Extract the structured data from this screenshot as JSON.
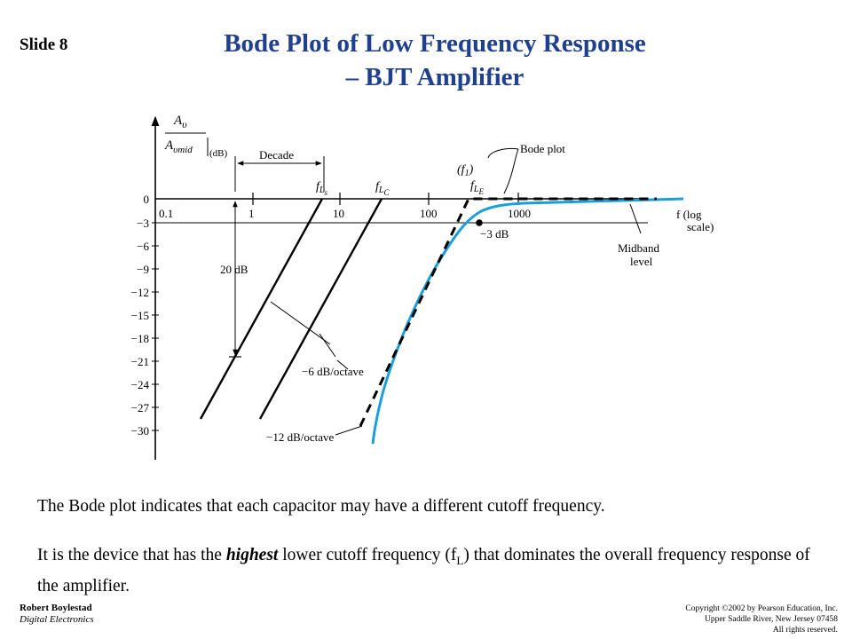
{
  "header": {
    "slide_label": "Slide 8",
    "title_line1": "Bode Plot of Low Frequency Response",
    "title_line2": "– BJT Amplifier"
  },
  "diagram": {
    "y_axis_label_top": "A",
    "y_axis_label_top_sub": "υ",
    "y_axis_label_bottom": "A",
    "y_axis_label_bottom_sub": "υmid",
    "y_axis_unit": "(dB)",
    "y_ticks": [
      "0",
      "−3",
      "−6",
      "−9",
      "−12",
      "−15",
      "−18",
      "−21",
      "−24",
      "−27",
      "−30"
    ],
    "x_ticks": [
      "0.1",
      "1",
      "10",
      "100",
      "1000"
    ],
    "x_axis_label_line1": "f (log",
    "x_axis_label_line2": "scale)",
    "decade_label": "Decade",
    "twenty_db_label": "20 dB",
    "fls_label": "f",
    "fls_sub": "L",
    "fls_subsub": "s",
    "flc_label": "f",
    "flc_sub": "L",
    "flc_subsub": "C",
    "fle_paren": "(f",
    "fle_paren_sub": "1",
    "fle_paren_close": ")",
    "fle_label": "f",
    "fle_sub": "L",
    "fle_subsub": "E",
    "bode_plot_label": "Bode plot",
    "minus3db_label": "−3 dB",
    "midband_line1": "Midband",
    "midband_line2": "level",
    "six_db_label": "−6 dB/octave",
    "twelve_db_label": "−12 dB/octave",
    "colors": {
      "actual_curve": "#1a9fdb",
      "lines": "#000000"
    }
  },
  "body": {
    "para1": "The Bode plot indicates that each capacitor may have a different cutoff frequency.",
    "para2_a": "It is the device that has the ",
    "para2_highlight": "highest",
    "para2_b": "  lower cutoff frequency (f",
    "para2_sub": "L",
    "para2_c": ") that dominates the overall frequency response of the amplifier."
  },
  "footer": {
    "author": "Robert Boylestad",
    "book": "Digital Electronics",
    "copyright_line1": "Copyright ©2002 by Pearson Education, Inc.",
    "copyright_line2": "Upper Saddle River, New Jersey 07458",
    "copyright_line3": "All rights reserved."
  }
}
